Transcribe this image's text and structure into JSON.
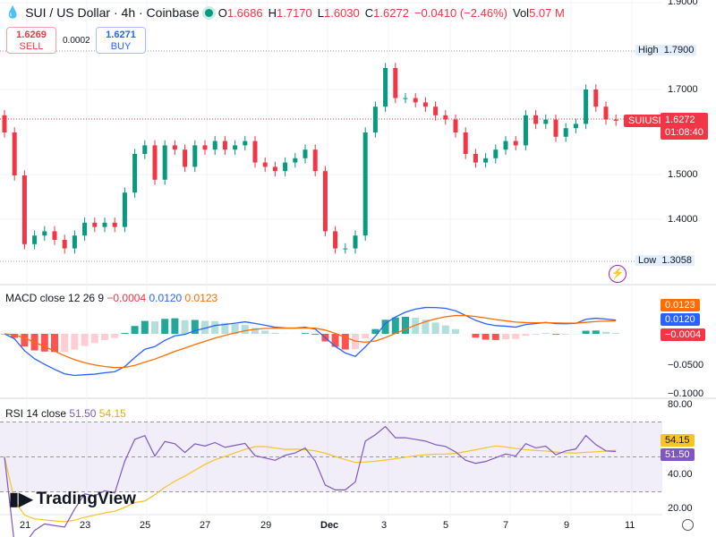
{
  "header": {
    "title": "SUI / US Dollar · 4h · Coinbase",
    "open_label": "O",
    "open": "1.6686",
    "high_label": "H",
    "high": "1.7170",
    "low_label": "L",
    "low": "1.6030",
    "close_label": "C",
    "close": "1.6272",
    "change": "−0.0410 (−2.46%)",
    "vol_label": "Vol",
    "vol": "5.07 M"
  },
  "quote": {
    "sell_price": "1.6269",
    "sell_label": "SELL",
    "spread": "0.0002",
    "buy_price": "1.6271",
    "buy_label": "BUY"
  },
  "price_axis": {
    "ticks": [
      "1.9000",
      "1.7000",
      "1.5000",
      "1.4000"
    ],
    "high_label": "High",
    "high_value": "1.7900",
    "low_label": "Low",
    "low_value": "1.3058",
    "symbol_tag": "SUIUSD",
    "last_price": "1.6272",
    "countdown": "01:08:40"
  },
  "macd": {
    "label": "MACD close 12 26 9",
    "hist": "−0.0004",
    "macd": "0.0120",
    "signal": "0.0123",
    "ticks": [
      "−0.0500",
      "−0.1000"
    ]
  },
  "rsi": {
    "label": "RSI 14 close",
    "rsi": "51.50",
    "ma": "54.15",
    "ticks": [
      "80.00",
      "40.00",
      "20.00"
    ]
  },
  "time_axis": {
    "ticks": [
      "21",
      "23",
      "25",
      "27",
      "29",
      "Dec",
      "3",
      "5",
      "7",
      "9",
      "11"
    ]
  },
  "logo": "TradingView",
  "colors": {
    "up": "#089981",
    "down": "#f23645",
    "macd": "#2962ff",
    "signal": "#ff6d00",
    "rsi": "#7e57c2",
    "rsi_ma": "#f7c325"
  },
  "chart_data": {
    "type": "candlestick",
    "title": "SUI / US Dollar · 4h · Coinbase",
    "x_range": [
      "Nov 20",
      "Dec 11"
    ],
    "ylim": [
      1.28,
      1.9
    ],
    "closes": [
      1.6,
      1.5,
      1.34,
      1.36,
      1.37,
      1.35,
      1.33,
      1.36,
      1.39,
      1.38,
      1.39,
      1.38,
      1.46,
      1.55,
      1.57,
      1.49,
      1.57,
      1.56,
      1.52,
      1.57,
      1.56,
      1.58,
      1.56,
      1.57,
      1.58,
      1.53,
      1.52,
      1.51,
      1.53,
      1.54,
      1.56,
      1.51,
      1.37,
      1.33,
      1.33,
      1.36,
      1.6,
      1.66,
      1.75,
      1.68,
      1.68,
      1.67,
      1.66,
      1.64,
      1.63,
      1.6,
      1.55,
      1.53,
      1.54,
      1.56,
      1.58,
      1.57,
      1.64,
      1.62,
      1.63,
      1.59,
      1.61,
      1.62,
      1.7,
      1.66,
      1.63,
      1.6272
    ],
    "first_open": 1.64,
    "grid": true
  }
}
